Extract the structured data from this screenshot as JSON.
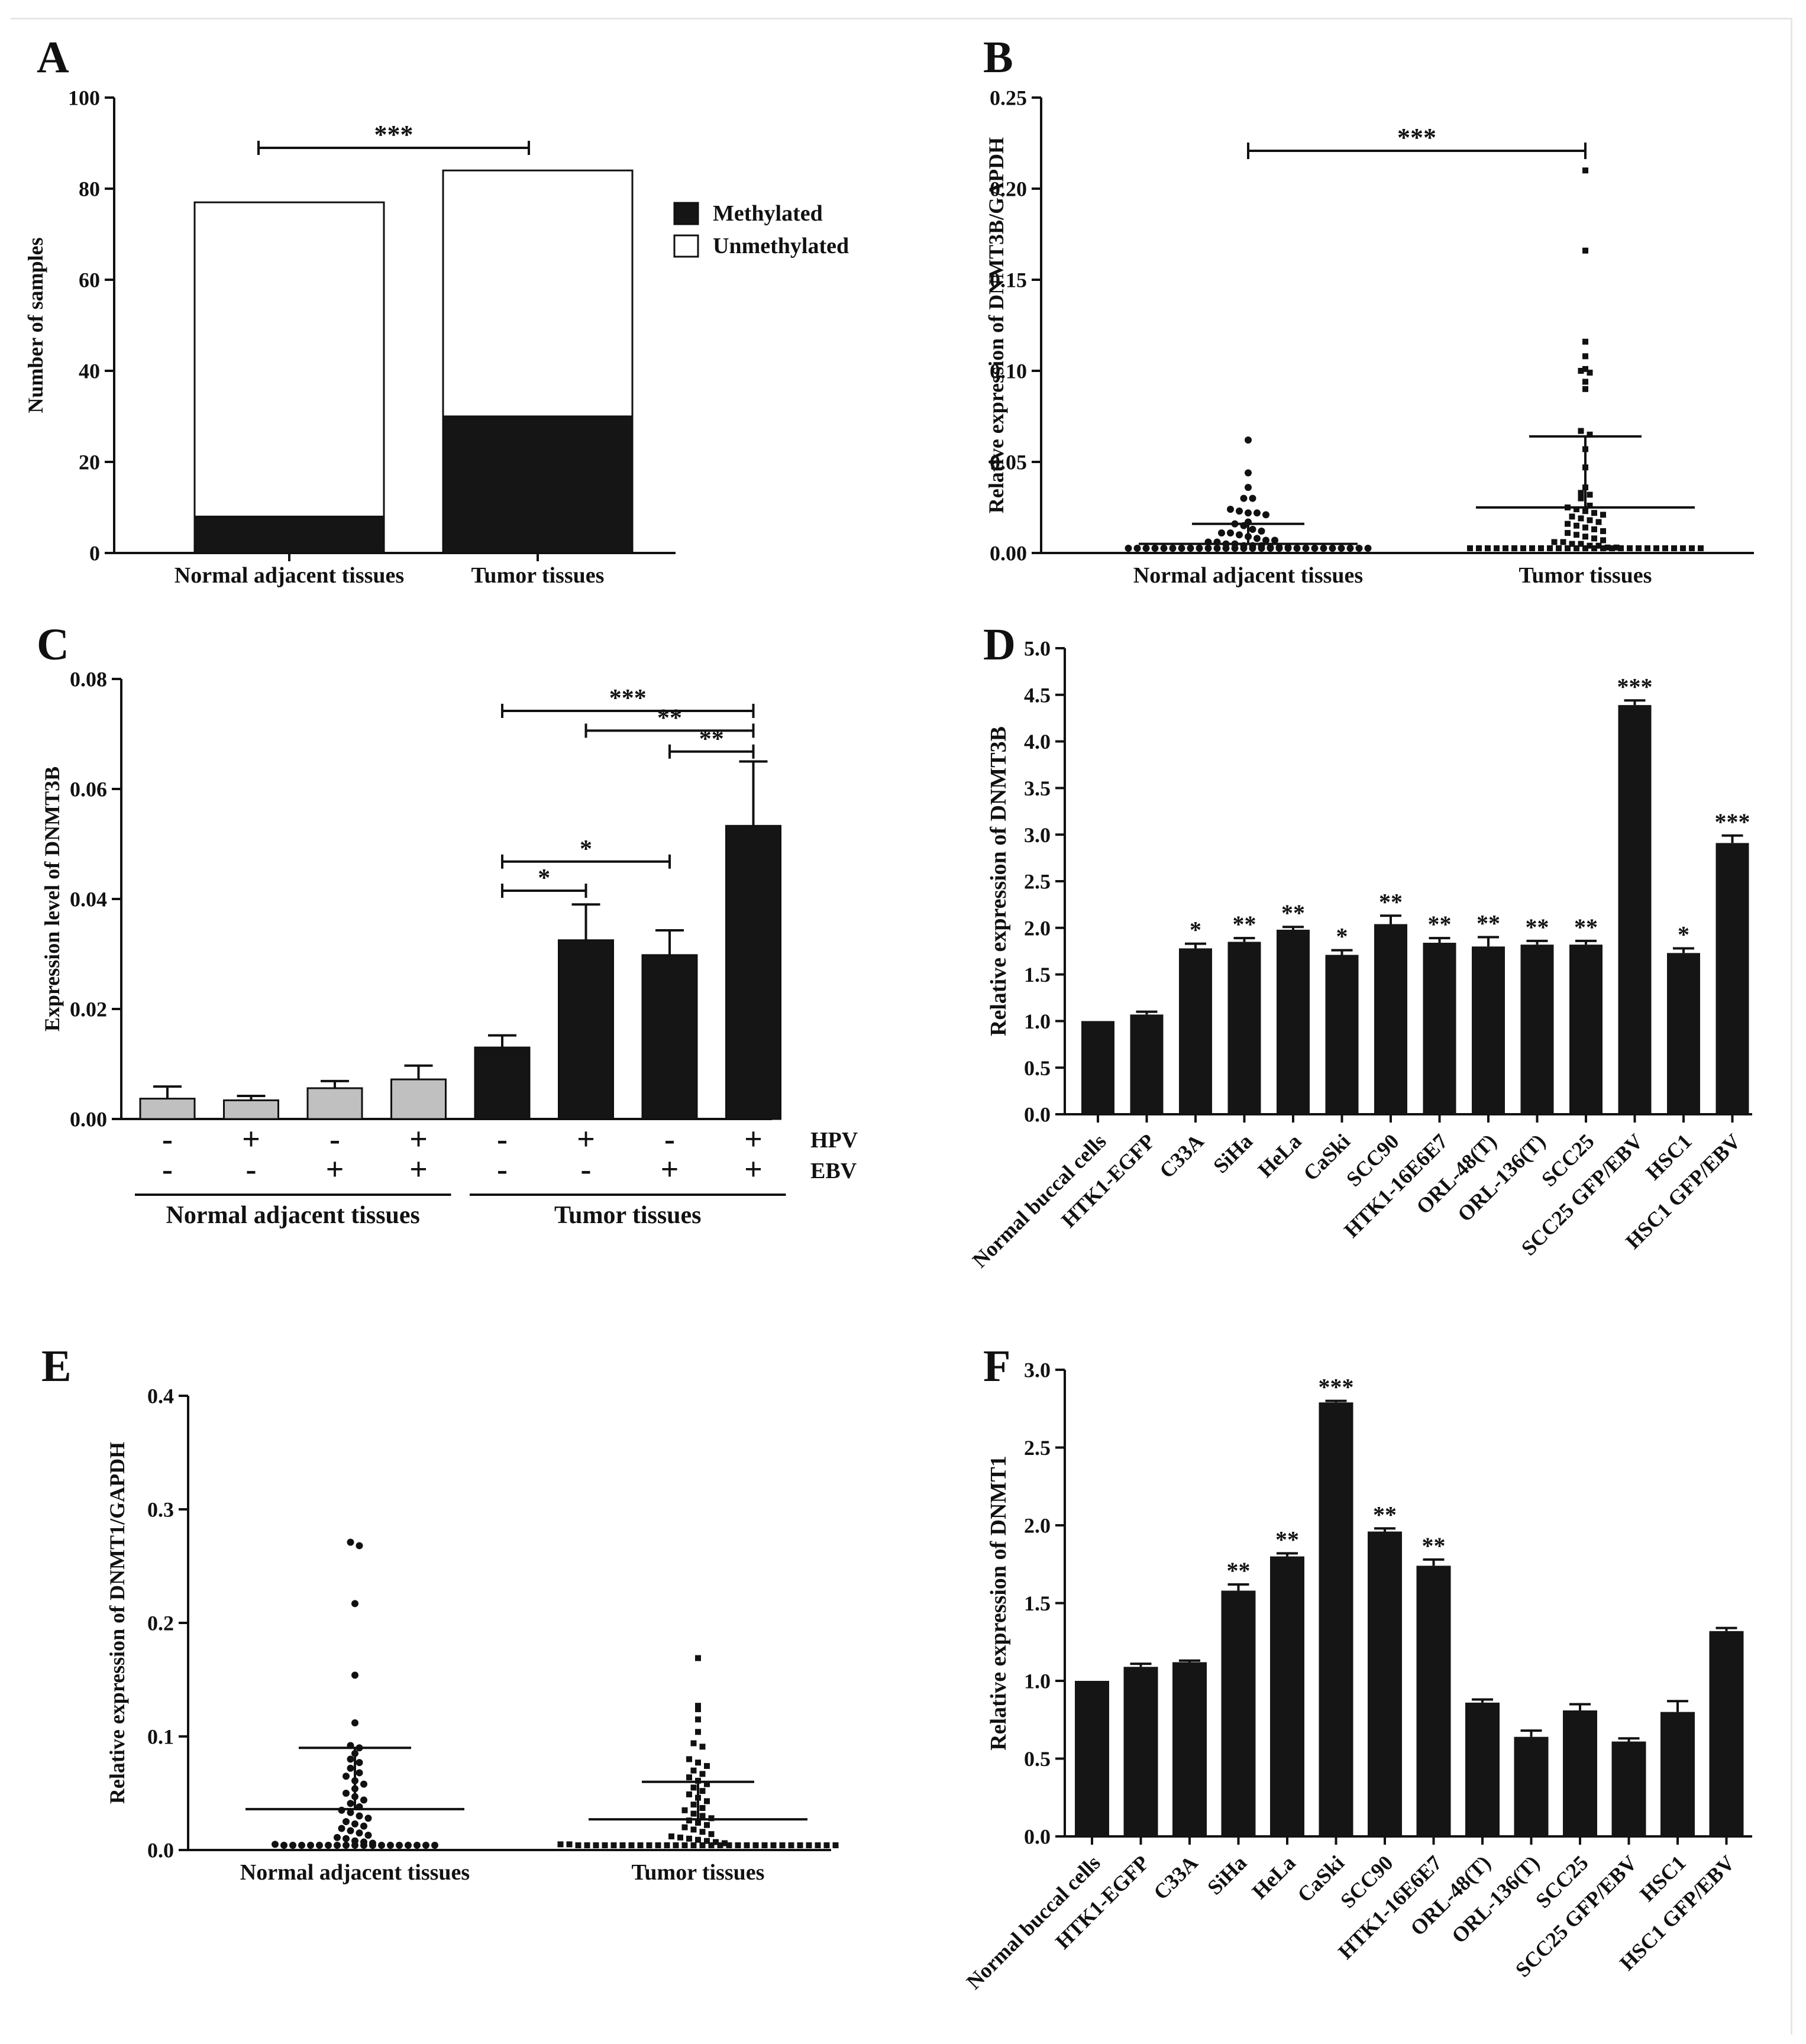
{
  "chart_data": [
    {
      "panel": "A",
      "type": "bar",
      "stacked": true,
      "title": "",
      "ylabel": "Number of samples",
      "xlabel": "",
      "ylim": [
        0,
        100
      ],
      "yticks": [
        0,
        20,
        40,
        60,
        80,
        100
      ],
      "categories": [
        "Normal adjacent tissues",
        "Tumor tissues"
      ],
      "series": [
        {
          "name": "Methylated",
          "values": [
            8,
            30
          ],
          "color": "#151515"
        },
        {
          "name": "Unmethylated",
          "values": [
            69,
            54
          ],
          "color": "#ffffff"
        }
      ],
      "legend_position": "top-right",
      "annotations": [
        {
          "from": "Normal adjacent tissues",
          "to": "Tumor tissues",
          "label": "***"
        }
      ]
    },
    {
      "panel": "B",
      "type": "scatter",
      "ylabel": "Relative expression of DNMT3B/GAPDH",
      "ylim": [
        0,
        0.25
      ],
      "yticks": [
        "0.00",
        "0.05",
        "0.10",
        "0.15",
        "0.20",
        "0.25"
      ],
      "categories": [
        "Normal adjacent tissues",
        "Tumor tissues"
      ],
      "series": [
        {
          "name": "Normal adjacent tissues",
          "marker": "circle",
          "mean": 0.005,
          "sd_upper": 0.016,
          "values": [
            0.062,
            0.044,
            0.036,
            0.03,
            0.03,
            0.024,
            0.023,
            0.022,
            0.022,
            0.021,
            0.017,
            0.016,
            0.015,
            0.013,
            0.012,
            0.011,
            0.011,
            0.01,
            0.009,
            0.008,
            0.007,
            0.007,
            0.006,
            0.006,
            0.005,
            0.005,
            0.004,
            0.004,
            0.004,
            0.003,
            0.003,
            0.003,
            0.002,
            0.002,
            0.002,
            0.002,
            0.001,
            0.001,
            0.001,
            0.001,
            0.001,
            0.001,
            0.001,
            0.001,
            0.001,
            0.001,
            0.001,
            0.001,
            0.001,
            0.001,
            0.001,
            0.001,
            0.001,
            0.001,
            0.001,
            0.001,
            0.001,
            0.001,
            0.001,
            0.001
          ]
        },
        {
          "name": "Tumor tissues",
          "marker": "square",
          "mean": 0.025,
          "sd_upper": 0.064,
          "values": [
            0.21,
            0.166,
            0.116,
            0.108,
            0.101,
            0.1,
            0.099,
            0.094,
            0.09,
            0.067,
            0.065,
            0.057,
            0.047,
            0.036,
            0.033,
            0.032,
            0.03,
            0.026,
            0.025,
            0.024,
            0.023,
            0.022,
            0.021,
            0.02,
            0.019,
            0.018,
            0.017,
            0.016,
            0.015,
            0.014,
            0.013,
            0.012,
            0.011,
            0.01,
            0.009,
            0.008,
            0.007,
            0.006,
            0.006,
            0.005,
            0.005,
            0.004,
            0.004,
            0.003,
            0.003,
            0.002,
            0.002,
            0.002,
            0.002,
            0.001,
            0.001,
            0.001,
            0.001,
            0.001,
            0.001,
            0.001,
            0.001,
            0.001,
            0.001,
            0.001,
            0.001,
            0.001,
            0.001,
            0.001,
            0.001,
            0.001,
            0.001,
            0.001,
            0.001,
            0.001,
            0.001,
            0.001
          ]
        }
      ],
      "annotations": [
        {
          "from": "Normal adjacent tissues",
          "to": "Tumor tissues",
          "label": "***"
        }
      ]
    },
    {
      "panel": "C",
      "type": "bar",
      "ylabel": "Expression level of DNMT3B",
      "ylim": [
        0,
        0.08
      ],
      "yticks": [
        "0.00",
        "0.02",
        "0.04",
        "0.06",
        "0.08"
      ],
      "row_labels": [
        "HPV",
        "EBV"
      ],
      "groups": [
        {
          "label": "Normal adjacent tissues",
          "bars": [
            0,
            1,
            2,
            3
          ]
        },
        {
          "label": "Tumor tissues",
          "bars": [
            4,
            5,
            6,
            7
          ]
        }
      ],
      "bars": [
        {
          "value": 0.0037,
          "error": 0.0022,
          "HPV": "-",
          "EBV": "-",
          "color": "#c0c0c0"
        },
        {
          "value": 0.0034,
          "error": 0.0008,
          "HPV": "+",
          "EBV": "-",
          "color": "#c0c0c0"
        },
        {
          "value": 0.0056,
          "error": 0.0013,
          "HPV": "-",
          "EBV": "+",
          "color": "#c0c0c0"
        },
        {
          "value": 0.0072,
          "error": 0.0025,
          "HPV": "+",
          "EBV": "+",
          "color": "#c0c0c0"
        },
        {
          "value": 0.013,
          "error": 0.0022,
          "HPV": "-",
          "EBV": "-",
          "color": "#151515"
        },
        {
          "value": 0.0325,
          "error": 0.0065,
          "HPV": "+",
          "EBV": "-",
          "color": "#151515"
        },
        {
          "value": 0.0298,
          "error": 0.0045,
          "HPV": "-",
          "EBV": "+",
          "color": "#151515"
        },
        {
          "value": 0.0533,
          "error": 0.0117,
          "HPV": "+",
          "EBV": "+",
          "color": "#151515"
        }
      ],
      "annotations": [
        {
          "from": 4,
          "to": 7,
          "label": "***",
          "y": 0.0742
        },
        {
          "from": 5,
          "to": 7,
          "label": "**",
          "y": 0.0706
        },
        {
          "from": 6,
          "to": 7,
          "label": "**",
          "y": 0.0668
        },
        {
          "from": 4,
          "to": 6,
          "label": "*",
          "y": 0.0468
        },
        {
          "from": 4,
          "to": 5,
          "label": "*",
          "y": 0.0415
        }
      ]
    },
    {
      "panel": "D",
      "type": "bar",
      "ylabel": "Relative expression of DNMT3B",
      "ylim": [
        0,
        5
      ],
      "yticks": [
        "0.0",
        "0.5",
        "1.0",
        "1.5",
        "2.0",
        "2.5",
        "3.0",
        "3.5",
        "4.0",
        "4.5",
        "5.0"
      ],
      "categories": [
        "Normal buccal cells",
        "HTK1-EGFP",
        "C33A",
        "SiHa",
        "HeLa",
        "CaSki",
        "SCC90",
        "HTK1-16E6E7",
        "ORL-48(T)",
        "ORL-136(T)",
        "SCC25",
        "SCC25 GFP/EBV",
        "HSC1",
        "HSC1 GFP/EBV"
      ],
      "values": [
        1.0,
        1.07,
        1.78,
        1.85,
        1.98,
        1.71,
        2.04,
        1.84,
        1.8,
        1.82,
        1.82,
        4.39,
        1.73,
        2.91
      ],
      "errors": [
        0.0,
        0.03,
        0.05,
        0.04,
        0.03,
        0.05,
        0.09,
        0.05,
        0.1,
        0.04,
        0.04,
        0.05,
        0.05,
        0.08
      ],
      "significance": [
        "",
        "",
        "*",
        "**",
        "**",
        "*",
        "**",
        "**",
        "**",
        "**",
        "**",
        "***",
        "*",
        "***"
      ]
    },
    {
      "panel": "E",
      "type": "scatter",
      "ylabel": "Relative expression of DNMT1/GAPDH",
      "ylim": [
        0,
        0.4
      ],
      "yticks": [
        "0.0",
        "0.1",
        "0.2",
        "0.3",
        "0.4"
      ],
      "categories": [
        "Normal adjacent tissues",
        "Tumor tissues"
      ],
      "series": [
        {
          "name": "Normal adjacent tissues",
          "marker": "circle",
          "mean": 0.036,
          "sd_upper": 0.09,
          "values": [
            0.271,
            0.268,
            0.217,
            0.154,
            0.112,
            0.092,
            0.09,
            0.085,
            0.08,
            0.077,
            0.072,
            0.068,
            0.065,
            0.061,
            0.058,
            0.054,
            0.05,
            0.047,
            0.044,
            0.041,
            0.038,
            0.035,
            0.033,
            0.03,
            0.028,
            0.025,
            0.023,
            0.021,
            0.019,
            0.017,
            0.015,
            0.013,
            0.011,
            0.01,
            0.008,
            0.007,
            0.006,
            0.005,
            0.004,
            0.004,
            0.003,
            0.003,
            0.003,
            0.003,
            0.003,
            0.003,
            0.003,
            0.003,
            0.003,
            0.003,
            0.003,
            0.003,
            0.003,
            0.003,
            0.003,
            0.003
          ]
        },
        {
          "name": "Tumor tissues",
          "marker": "square",
          "mean": 0.027,
          "sd_upper": 0.06,
          "values": [
            0.169,
            0.127,
            0.124,
            0.115,
            0.104,
            0.094,
            0.091,
            0.08,
            0.077,
            0.074,
            0.07,
            0.067,
            0.064,
            0.061,
            0.058,
            0.055,
            0.052,
            0.049,
            0.046,
            0.043,
            0.04,
            0.037,
            0.035,
            0.032,
            0.03,
            0.028,
            0.026,
            0.024,
            0.022,
            0.02,
            0.018,
            0.016,
            0.014,
            0.012,
            0.011,
            0.01,
            0.009,
            0.008,
            0.007,
            0.006,
            0.005,
            0.005,
            0.004,
            0.004,
            0.004,
            0.004,
            0.004,
            0.004,
            0.004,
            0.004,
            0.004,
            0.004,
            0.004,
            0.004,
            0.004,
            0.004,
            0.004,
            0.004,
            0.004,
            0.004,
            0.004,
            0.004,
            0.004,
            0.004,
            0.004,
            0.004,
            0.004,
            0.004,
            0.004,
            0.004,
            0.004,
            0.004
          ]
        }
      ]
    },
    {
      "panel": "F",
      "type": "bar",
      "ylabel": "Relative expression of DNMT1",
      "ylim": [
        0,
        3
      ],
      "yticks": [
        "0.0",
        "0.5",
        "1.0",
        "1.5",
        "2.0",
        "2.5",
        "3.0"
      ],
      "categories": [
        "Normal buccal cells",
        "HTK1-EGFP",
        "C33A",
        "SiHa",
        "HeLa",
        "CaSki",
        "SCC90",
        "HTK1-16E6E7",
        "ORL-48(T)",
        "ORL-136(T)",
        "SCC25",
        "SCC25 GFP/EBV",
        "HSC1",
        "HSC1 GFP/EBV"
      ],
      "values": [
        1.0,
        1.09,
        1.12,
        1.58,
        1.8,
        2.79,
        1.96,
        1.74,
        0.86,
        0.64,
        0.81,
        0.61,
        0.8,
        1.32
      ],
      "errors": [
        0.0,
        0.02,
        0.01,
        0.04,
        0.02,
        0.01,
        0.02,
        0.04,
        0.02,
        0.04,
        0.04,
        0.02,
        0.07,
        0.02
      ],
      "significance": [
        "",
        "",
        "",
        "**",
        "**",
        "***",
        "**",
        "**",
        "",
        "",
        "",
        "",
        "",
        ""
      ]
    }
  ],
  "panel_labels": [
    "A",
    "B",
    "C",
    "D",
    "E",
    "F"
  ]
}
